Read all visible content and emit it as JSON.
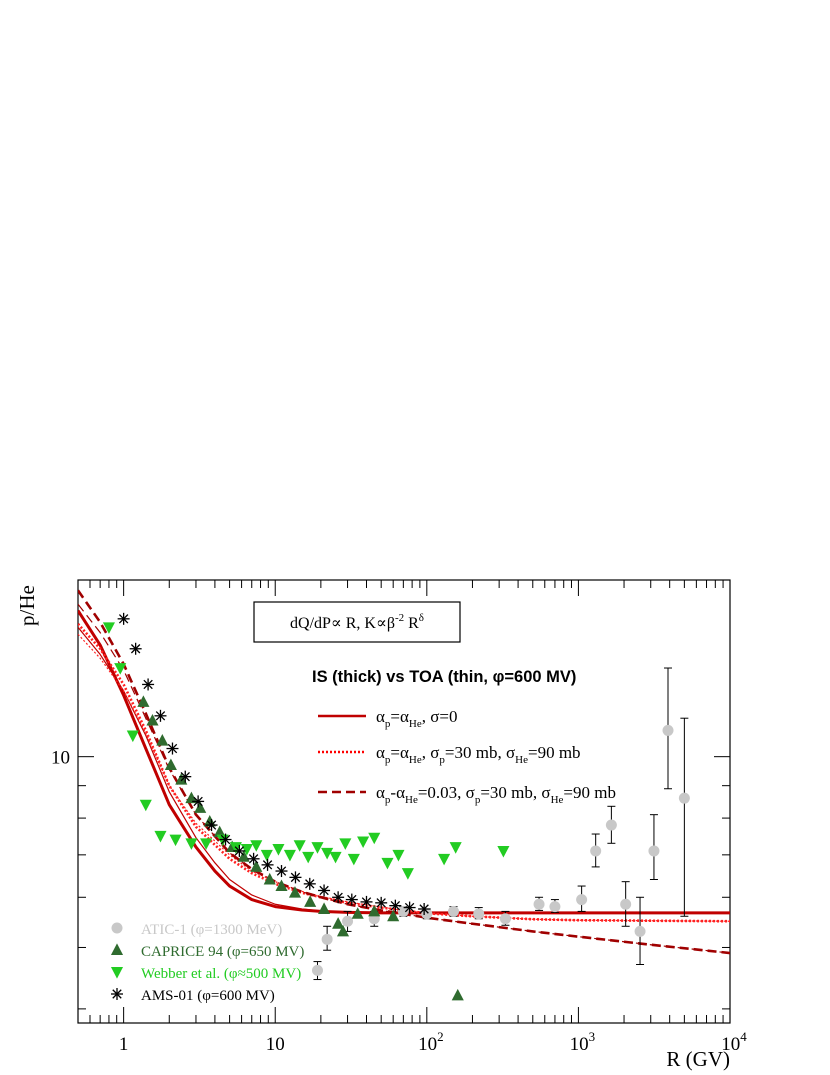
{
  "chart_data": {
    "type": "scatter",
    "xlabel": "R (GV)",
    "ylabel": "p/He",
    "xscale": "log",
    "yscale": "log",
    "xlim": [
      0.5,
      10000
    ],
    "ylim": [
      3.8,
      19
    ],
    "x_ticks": [
      {
        "value": 1,
        "label": "1"
      },
      {
        "value": 10,
        "label": "10"
      },
      {
        "value": 100,
        "label": "10",
        "exp": "2"
      },
      {
        "value": 1000,
        "label": "10",
        "exp": "3"
      },
      {
        "value": 10000,
        "label": "10",
        "exp": "4"
      }
    ],
    "y_ticks": [
      {
        "value": 10,
        "label": "10"
      }
    ],
    "grid": false,
    "legend_position": "top-right",
    "model_box_text": "dQ/dP∝ R, K∝β-2 Rδ",
    "model_box": {
      "parts": [
        "dQ/dP",
        "∝",
        " R, K",
        "∝",
        "β",
        "-2",
        " R",
        "δ"
      ]
    },
    "legend_title": "IS (thick) vs TOA (thin, φ=600 MV)",
    "model_legend": [
      {
        "name": "αp=αHe, σ=0",
        "parts": [
          "α",
          "p",
          "=α",
          "He",
          ", σ=0"
        ],
        "color": "#c00000",
        "style": "solid"
      },
      {
        "name": "αp=αHe, σp=30 mb, σHe=90 mb",
        "parts": [
          "α",
          "p",
          "=α",
          "He",
          ", σ",
          "p",
          "=30 mb, σ",
          "He",
          "=90 mb"
        ],
        "color": "#ff0000",
        "style": "dotted"
      },
      {
        "name": "αp-αHe=0.03, σp=30 mb, σHe=90 mb",
        "parts": [
          "α",
          "p",
          "-α",
          "He",
          "=0.03, σ",
          "p",
          "=30 mb, σ",
          "He",
          "=90 mb"
        ],
        "color": "#a00000",
        "style": "dashed"
      }
    ],
    "data_legend": [
      {
        "name": "ATIC-1 (φ=1300 MeV)",
        "color": "#c8c8c8",
        "marker": "circle"
      },
      {
        "name": "CAPRICE 94 (φ=650 MV)",
        "color": "#2f6b2f",
        "marker": "triangle-up"
      },
      {
        "name": "Webber et al. (φ≈500 MV)",
        "color": "#22cc22",
        "marker": "triangle-down"
      },
      {
        "name": "AMS-01 (φ=600 MV)",
        "color": "#000000",
        "marker": "star"
      }
    ],
    "model_series": [
      {
        "id": "s1_is",
        "color": "#c00000",
        "dash": "none",
        "width": 3,
        "x": [
          0.5,
          0.7,
          1,
          1.4,
          2,
          3,
          4,
          5,
          7,
          10,
          15,
          20,
          30,
          50,
          100,
          200,
          500,
          1000,
          3000,
          10000
        ],
        "y": [
          17.0,
          15.0,
          12.5,
          10.3,
          8.4,
          7.2,
          6.6,
          6.25,
          5.95,
          5.8,
          5.73,
          5.7,
          5.68,
          5.67,
          5.67,
          5.67,
          5.67,
          5.67,
          5.67,
          5.67
        ]
      },
      {
        "id": "s1_toa",
        "color": "#c00000",
        "dash": "none",
        "width": 1.2,
        "x": [
          0.5,
          0.7,
          1,
          1.4,
          2,
          3,
          4,
          5,
          7,
          10,
          15,
          20,
          30,
          50,
          100,
          200,
          500,
          1000,
          3000,
          10000
        ],
        "y": [
          16.0,
          14.5,
          12.7,
          10.8,
          8.8,
          7.45,
          6.8,
          6.4,
          6.05,
          5.85,
          5.75,
          5.71,
          5.69,
          5.67,
          5.67,
          5.67,
          5.67,
          5.67,
          5.67,
          5.67
        ]
      },
      {
        "id": "s2_is",
        "color": "#ff2020",
        "dash": "2,2",
        "width": 2.6,
        "x": [
          0.5,
          0.7,
          1,
          1.4,
          2,
          3,
          5,
          7,
          10,
          15,
          20,
          30,
          50,
          70,
          100,
          200,
          500,
          1000,
          3000,
          10000
        ],
        "y": [
          16.2,
          14.8,
          13.0,
          11.0,
          9.0,
          7.75,
          6.9,
          6.55,
          6.3,
          6.1,
          6.0,
          5.88,
          5.78,
          5.72,
          5.66,
          5.6,
          5.54,
          5.52,
          5.51,
          5.5
        ]
      },
      {
        "id": "s2_toa",
        "color": "#ff2020",
        "dash": "2,2",
        "width": 1.2,
        "x": [
          0.5,
          0.7,
          1,
          1.4,
          2,
          3,
          5,
          7,
          10,
          15,
          20,
          30,
          50,
          70,
          100,
          200,
          500,
          1000,
          3000,
          10000
        ],
        "y": [
          15.6,
          14.3,
          12.7,
          10.9,
          9.0,
          7.85,
          7.0,
          6.6,
          6.35,
          6.13,
          6.02,
          5.9,
          5.79,
          5.72,
          5.66,
          5.6,
          5.54,
          5.52,
          5.51,
          5.5
        ]
      },
      {
        "id": "s3_is",
        "color": "#a00000",
        "dash": "9,5",
        "width": 2.6,
        "x": [
          0.5,
          0.7,
          1,
          1.4,
          2,
          3,
          5,
          7,
          10,
          15,
          20,
          30,
          50,
          70,
          100,
          200,
          500,
          1000,
          3000,
          10000
        ],
        "y": [
          18.3,
          16.3,
          14.0,
          11.7,
          9.6,
          8.1,
          7.05,
          6.65,
          6.35,
          6.12,
          6.0,
          5.85,
          5.72,
          5.65,
          5.57,
          5.45,
          5.3,
          5.2,
          5.05,
          4.9
        ]
      },
      {
        "id": "s3_toa",
        "color": "#a00000",
        "dash": "9,5",
        "width": 1.2,
        "x": [
          0.5,
          0.7,
          1,
          1.4,
          2,
          3,
          5,
          7,
          10,
          15,
          20,
          30,
          50,
          70,
          100,
          200,
          500,
          1000,
          3000,
          10000
        ],
        "y": [
          17.4,
          15.7,
          13.7,
          11.5,
          9.55,
          8.1,
          7.05,
          6.65,
          6.35,
          6.12,
          6.0,
          5.85,
          5.72,
          5.65,
          5.57,
          5.45,
          5.3,
          5.2,
          5.05,
          4.9
        ]
      }
    ],
    "data_series": [
      {
        "name": "ATIC-1",
        "marker": "circle",
        "color": "#c8c8c8",
        "points": [
          {
            "x": 19,
            "y": 4.6,
            "err": [
              4.45,
              4.75
            ]
          },
          {
            "x": 22,
            "y": 5.15,
            "err": [
              4.95,
              5.4
            ]
          },
          {
            "x": 30,
            "y": 5.5,
            "err": [
              5.3,
              5.7
            ]
          },
          {
            "x": 45,
            "y": 5.55,
            "err": [
              5.4,
              5.7
            ]
          },
          {
            "x": 70,
            "y": 5.7,
            "err": [
              5.6,
              5.8
            ]
          },
          {
            "x": 100,
            "y": 5.65,
            "err": [
              5.55,
              5.75
            ]
          },
          {
            "x": 150,
            "y": 5.7,
            "err": [
              5.6,
              5.8
            ]
          },
          {
            "x": 220,
            "y": 5.65,
            "err": [
              5.55,
              5.78
            ]
          },
          {
            "x": 330,
            "y": 5.55,
            "err": [
              5.42,
              5.7
            ]
          },
          {
            "x": 550,
            "y": 5.85,
            "err": [
              5.72,
              6.0
            ]
          },
          {
            "x": 700,
            "y": 5.8,
            "err": [
              5.68,
              5.95
            ]
          },
          {
            "x": 1050,
            "y": 5.95,
            "err": [
              5.7,
              6.25
            ]
          },
          {
            "x": 1300,
            "y": 7.1,
            "err": [
              6.7,
              7.55
            ]
          },
          {
            "x": 1650,
            "y": 7.8,
            "err": [
              7.3,
              8.35
            ]
          },
          {
            "x": 2050,
            "y": 5.85,
            "err": [
              5.4,
              6.35
            ]
          },
          {
            "x": 2550,
            "y": 5.3,
            "err": [
              4.7,
              6.0
            ]
          },
          {
            "x": 3150,
            "y": 7.1,
            "err": [
              6.4,
              8.1
            ]
          },
          {
            "x": 3900,
            "y": 11.0,
            "err": [
              8.9,
              13.8
            ]
          },
          {
            "x": 5000,
            "y": 8.6,
            "err": [
              5.6,
              11.5
            ]
          }
        ]
      },
      {
        "name": "CAPRICE 94",
        "marker": "triangle-up",
        "color": "#2f6b2f",
        "points": [
          {
            "x": 1.35,
            "y": 12.2
          },
          {
            "x": 1.55,
            "y": 11.4
          },
          {
            "x": 1.8,
            "y": 10.6
          },
          {
            "x": 2.05,
            "y": 9.7
          },
          {
            "x": 2.4,
            "y": 9.2
          },
          {
            "x": 2.8,
            "y": 8.6
          },
          {
            "x": 3.2,
            "y": 8.3
          },
          {
            "x": 3.7,
            "y": 7.9
          },
          {
            "x": 4.3,
            "y": 7.6
          },
          {
            "x": 5.2,
            "y": 7.2
          },
          {
            "x": 6.2,
            "y": 6.95
          },
          {
            "x": 7.5,
            "y": 6.7
          },
          {
            "x": 9.2,
            "y": 6.4
          },
          {
            "x": 11,
            "y": 6.25
          },
          {
            "x": 13.5,
            "y": 6.1
          },
          {
            "x": 17,
            "y": 5.9
          },
          {
            "x": 21,
            "y": 5.75
          },
          {
            "x": 26,
            "y": 5.45
          },
          {
            "x": 28,
            "y": 5.3
          },
          {
            "x": 35,
            "y": 5.65
          },
          {
            "x": 45,
            "y": 5.7
          },
          {
            "x": 60,
            "y": 5.6
          },
          {
            "x": 160,
            "y": 4.2
          }
        ]
      },
      {
        "name": "Webber et al.",
        "marker": "triangle-down",
        "color": "#22cc22",
        "points": [
          {
            "x": 0.8,
            "y": 16.0
          },
          {
            "x": 0.95,
            "y": 13.8
          },
          {
            "x": 1.15,
            "y": 10.8
          },
          {
            "x": 1.4,
            "y": 8.4
          },
          {
            "x": 1.75,
            "y": 7.5
          },
          {
            "x": 2.2,
            "y": 7.4
          },
          {
            "x": 2.8,
            "y": 7.3
          },
          {
            "x": 3.5,
            "y": 7.3
          },
          {
            "x": 4.5,
            "y": 7.4
          },
          {
            "x": 5.5,
            "y": 7.2
          },
          {
            "x": 6.5,
            "y": 7.15
          },
          {
            "x": 7.5,
            "y": 7.25
          },
          {
            "x": 8.8,
            "y": 7.0
          },
          {
            "x": 10.5,
            "y": 7.15
          },
          {
            "x": 12.5,
            "y": 7.0
          },
          {
            "x": 14.5,
            "y": 7.25
          },
          {
            "x": 16.5,
            "y": 6.95
          },
          {
            "x": 19,
            "y": 7.2
          },
          {
            "x": 22,
            "y": 7.05
          },
          {
            "x": 25,
            "y": 6.95
          },
          {
            "x": 29,
            "y": 7.3
          },
          {
            "x": 33,
            "y": 6.9
          },
          {
            "x": 38,
            "y": 7.35
          },
          {
            "x": 45,
            "y": 7.45
          },
          {
            "x": 55,
            "y": 6.8
          },
          {
            "x": 65,
            "y": 7.0
          },
          {
            "x": 75,
            "y": 6.55
          },
          {
            "x": 130,
            "y": 6.9
          },
          {
            "x": 155,
            "y": 7.2
          },
          {
            "x": 320,
            "y": 7.1
          }
        ]
      },
      {
        "name": "AMS-01",
        "marker": "star",
        "color": "#000000",
        "points": [
          {
            "x": 1.0,
            "y": 16.5
          },
          {
            "x": 1.2,
            "y": 14.8
          },
          {
            "x": 1.45,
            "y": 13.0
          },
          {
            "x": 1.75,
            "y": 11.6
          },
          {
            "x": 2.1,
            "y": 10.3
          },
          {
            "x": 2.55,
            "y": 9.3
          },
          {
            "x": 3.1,
            "y": 8.5
          },
          {
            "x": 3.8,
            "y": 7.8
          },
          {
            "x": 4.7,
            "y": 7.4
          },
          {
            "x": 5.8,
            "y": 7.1
          },
          {
            "x": 7.2,
            "y": 6.9
          },
          {
            "x": 8.9,
            "y": 6.75
          },
          {
            "x": 11,
            "y": 6.6
          },
          {
            "x": 13.6,
            "y": 6.45
          },
          {
            "x": 16.9,
            "y": 6.3
          },
          {
            "x": 21,
            "y": 6.15
          },
          {
            "x": 26,
            "y": 6.0
          },
          {
            "x": 32,
            "y": 5.95
          },
          {
            "x": 40,
            "y": 5.9
          },
          {
            "x": 50,
            "y": 5.88
          },
          {
            "x": 62,
            "y": 5.82
          },
          {
            "x": 77,
            "y": 5.78
          },
          {
            "x": 96,
            "y": 5.75
          }
        ]
      }
    ]
  }
}
